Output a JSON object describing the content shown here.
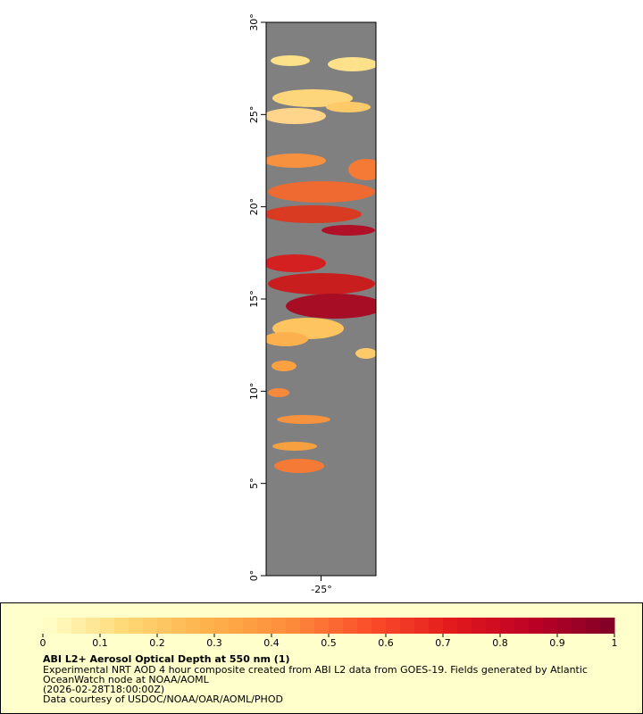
{
  "chart_data": {
    "type": "map",
    "xlim": [
      -28,
      -22
    ],
    "xticks": [
      {
        "value": -25,
        "label": "-25°"
      }
    ],
    "ylim": [
      0,
      30
    ],
    "yticks": [
      {
        "value": 0,
        "label": "0°"
      },
      {
        "value": 5,
        "label": "5°"
      },
      {
        "value": 10,
        "label": "10°"
      },
      {
        "value": 15,
        "label": "15°"
      },
      {
        "value": 20,
        "label": "20°"
      },
      {
        "value": 25,
        "label": "25°"
      },
      {
        "value": 30,
        "label": "30°"
      }
    ],
    "colorbar": {
      "lim": [
        0,
        1
      ],
      "ticks": [
        0,
        0.1,
        0.2,
        0.3,
        0.4,
        0.5,
        0.6,
        0.7,
        0.8,
        0.9,
        1
      ],
      "colors": [
        "#ffffcc",
        "#fed976",
        "#feb24c",
        "#fd8d3c",
        "#fc4e2a",
        "#e31a1c",
        "#bd0026",
        "#800026"
      ]
    },
    "title": "ABI L2+ Aerosol Optical Depth at 550 nm (1)",
    "notes": [
      "Experimental NRT AOD 4 hour composite created from ABI L2 data from GOES-19. Fields generated by Atlantic",
      "OceanWatch node at NOAA/AOML",
      "(2026-02-28T18:00:00Z)",
      "Data courtesy of USDOC/NOAA/OAR/AOML/PHOD"
    ]
  }
}
